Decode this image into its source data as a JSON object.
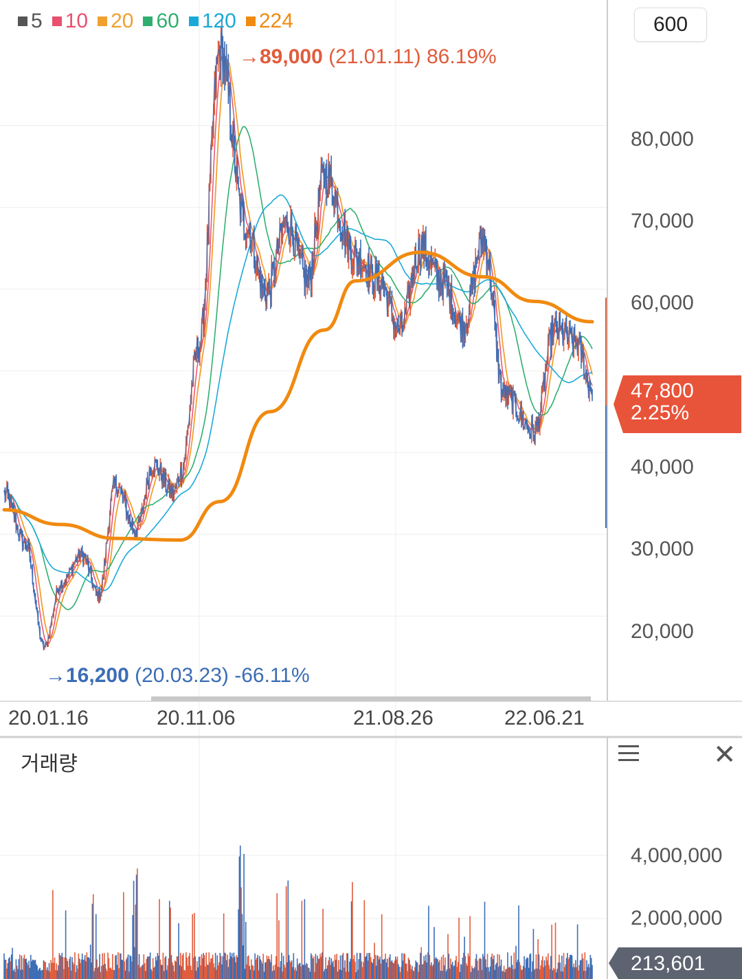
{
  "legend": {
    "items": [
      {
        "label": "5",
        "color": "#555555"
      },
      {
        "label": "10",
        "color": "#e8506e"
      },
      {
        "label": "20",
        "color": "#f0a030"
      },
      {
        "label": "60",
        "color": "#2fae6f"
      },
      {
        "label": "120",
        "color": "#1aa9d6"
      },
      {
        "label": "224",
        "color": "#f08a10"
      }
    ]
  },
  "period_button": "600",
  "price_axis": [
    "80,000",
    "70,000",
    "60,000",
    "40,000",
    "30,000",
    "20,000"
  ],
  "date_axis": [
    "20.01.16",
    "20.11.06",
    "21.08.26",
    "22.06.21"
  ],
  "annotations": {
    "max": {
      "arrow": "→",
      "price": "89,000",
      "date": "(21.01.11)",
      "pct": "86.19%"
    },
    "min": {
      "arrow": "→",
      "price": "16,200",
      "date": "(20.03.23)",
      "pct": "-66.11%"
    }
  },
  "current": {
    "price": "47,800",
    "change": "2.25%"
  },
  "volume": {
    "title": "거래량",
    "axis": [
      "4,000,000",
      "2,000,000"
    ],
    "current": "213,601"
  },
  "colors": {
    "price_line": "#3b6db5",
    "up": "#e05c3c",
    "ma224": "#f08a10",
    "tag": "#e8543a",
    "vol_tag": "#5d6370",
    "grid": "#eeeeee"
  },
  "chart_data": {
    "type": "line",
    "y_axis": {
      "min": 10000,
      "max": 92000
    },
    "price_keypoints": [
      {
        "date": "2020-01-16",
        "price": 35000
      },
      {
        "date": "2020-02-20",
        "price": 29000
      },
      {
        "date": "2020-03-23",
        "price": 16200
      },
      {
        "date": "2020-04-20",
        "price": 24000
      },
      {
        "date": "2020-05-25",
        "price": 27500
      },
      {
        "date": "2020-06-22",
        "price": 22500
      },
      {
        "date": "2020-07-20",
        "price": 36000
      },
      {
        "date": "2020-08-24",
        "price": 30500
      },
      {
        "date": "2020-09-21",
        "price": 38500
      },
      {
        "date": "2020-10-26",
        "price": 35000
      },
      {
        "date": "2020-11-06",
        "price": 37500
      },
      {
        "date": "2020-12-07",
        "price": 53000
      },
      {
        "date": "2021-01-11",
        "price": 89000
      },
      {
        "date": "2021-02-22",
        "price": 68000
      },
      {
        "date": "2021-03-29",
        "price": 59500
      },
      {
        "date": "2021-05-03",
        "price": 68000
      },
      {
        "date": "2021-06-07",
        "price": 61000
      },
      {
        "date": "2021-07-05",
        "price": 74000
      },
      {
        "date": "2021-08-26",
        "price": 64000
      },
      {
        "date": "2021-10-04",
        "price": 61000
      },
      {
        "date": "2021-11-08",
        "price": 55000
      },
      {
        "date": "2021-12-13",
        "price": 65000
      },
      {
        "date": "2022-01-17",
        "price": 61000
      },
      {
        "date": "2022-02-21",
        "price": 55500
      },
      {
        "date": "2022-03-28",
        "price": 66000
      },
      {
        "date": "2022-05-02",
        "price": 47000
      },
      {
        "date": "2022-06-21",
        "price": 42500
      },
      {
        "date": "2022-07-25",
        "price": 55000
      },
      {
        "date": "2022-08-29",
        "price": 53500
      },
      {
        "date": "2022-09-26",
        "price": 47800
      }
    ],
    "ma224": [
      {
        "date": "2020-01-16",
        "price": 33000
      },
      {
        "date": "2020-04-20",
        "price": 31200
      },
      {
        "date": "2020-07-20",
        "price": 29500
      },
      {
        "date": "2020-11-06",
        "price": 29300
      },
      {
        "date": "2021-01-11",
        "price": 34000
      },
      {
        "date": "2021-04-05",
        "price": 45000
      },
      {
        "date": "2021-07-05",
        "price": 55000
      },
      {
        "date": "2021-08-26",
        "price": 61000
      },
      {
        "date": "2021-12-13",
        "price": 64500
      },
      {
        "date": "2022-03-28",
        "price": 61500
      },
      {
        "date": "2022-06-21",
        "price": 58500
      },
      {
        "date": "2022-09-26",
        "price": 56000
      }
    ],
    "volume_range": [
      0,
      5000000
    ]
  }
}
